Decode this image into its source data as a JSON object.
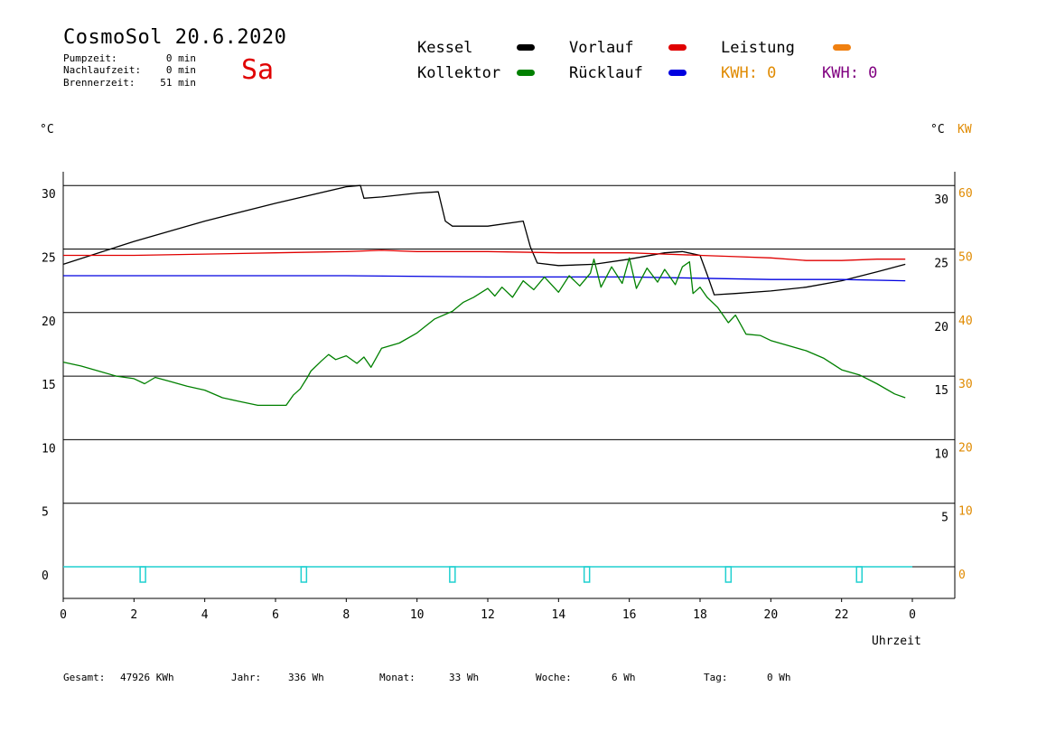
{
  "header": {
    "title": "CosmoSol 20.6.2020",
    "weekday": "Sa",
    "stats": [
      {
        "label": "Pumpzeit:",
        "value": "0 min"
      },
      {
        "label": "Nachlaufzeit:",
        "value": "0 min"
      },
      {
        "label": "Brennerzeit:",
        "value": "51 min"
      }
    ]
  },
  "legend": {
    "items": [
      {
        "label": "Kessel",
        "color": "#000000"
      },
      {
        "label": "Vorlauf",
        "color": "#e00000"
      },
      {
        "label": "Leistung",
        "color": "#f08010"
      },
      {
        "label": "Kollektor",
        "color": "#008000"
      },
      {
        "label": "Rücklauf",
        "color": "#0000e0"
      }
    ],
    "kwh": [
      {
        "label": "KWH: 0",
        "color": "#e08a00"
      },
      {
        "label": "KWH: 0",
        "color": "#800080"
      }
    ]
  },
  "axes": {
    "left_unit": "°C",
    "right_unit": "°C",
    "right_unit2": "KW",
    "xlabel": "Uhrzeit"
  },
  "footer": [
    {
      "label": "Gesamt:",
      "value": "47926 KWh"
    },
    {
      "label": "Jahr:",
      "value": "336 Wh"
    },
    {
      "label": "Monat:",
      "value": "33 Wh"
    },
    {
      "label": "Woche:",
      "value": "6 Wh"
    },
    {
      "label": "Tag:",
      "value": "0 Wh"
    }
  ],
  "chart_data": {
    "type": "line",
    "x_ticks": [
      "0",
      "2",
      "4",
      "6",
      "8",
      "10",
      "12",
      "14",
      "16",
      "18",
      "20",
      "22",
      "0"
    ],
    "y_left_ticks": [
      "0",
      "5",
      "10",
      "15",
      "20",
      "25",
      "30"
    ],
    "y_right_ticks": [
      "5",
      "10",
      "15",
      "20",
      "25",
      "30"
    ],
    "y_kw_ticks": [
      "0",
      "10",
      "20",
      "30",
      "40",
      "50",
      "60"
    ],
    "xlim": [
      0,
      24
    ],
    "ylim": [
      -2.4,
      31
    ],
    "series": [
      {
        "name": "Kessel",
        "color": "#000000",
        "points": [
          [
            0,
            23.8
          ],
          [
            2,
            25.6
          ],
          [
            4,
            27.2
          ],
          [
            6,
            28.6
          ],
          [
            8,
            29.9
          ],
          [
            8.4,
            30.0
          ],
          [
            8.5,
            29.0
          ],
          [
            9,
            29.1
          ],
          [
            10,
            29.4
          ],
          [
            10.6,
            29.5
          ],
          [
            10.8,
            27.2
          ],
          [
            11,
            26.8
          ],
          [
            12,
            26.8
          ],
          [
            13,
            27.2
          ],
          [
            13.2,
            25.2
          ],
          [
            13.4,
            23.9
          ],
          [
            14,
            23.7
          ],
          [
            15,
            23.8
          ],
          [
            16,
            24.2
          ],
          [
            17,
            24.7
          ],
          [
            17.5,
            24.8
          ],
          [
            18,
            24.5
          ],
          [
            18.2,
            23.0
          ],
          [
            18.4,
            21.4
          ],
          [
            19,
            21.5
          ],
          [
            20,
            21.7
          ],
          [
            21,
            22.0
          ],
          [
            22,
            22.5
          ],
          [
            23,
            23.2
          ],
          [
            23.8,
            23.8
          ]
        ]
      },
      {
        "name": "Vorlauf",
        "color": "#e00000",
        "points": [
          [
            0,
            24.5
          ],
          [
            2,
            24.5
          ],
          [
            4,
            24.6
          ],
          [
            6,
            24.7
          ],
          [
            8,
            24.8
          ],
          [
            9,
            24.9
          ],
          [
            10,
            24.8
          ],
          [
            12,
            24.8
          ],
          [
            14,
            24.7
          ],
          [
            16,
            24.7
          ],
          [
            17,
            24.6
          ],
          [
            18,
            24.5
          ],
          [
            19,
            24.4
          ],
          [
            20,
            24.3
          ],
          [
            21,
            24.1
          ],
          [
            22,
            24.1
          ],
          [
            23,
            24.2
          ],
          [
            23.8,
            24.2
          ]
        ]
      },
      {
        "name": "Rücklauf",
        "color": "#0000e0",
        "points": [
          [
            0,
            22.9
          ],
          [
            4,
            22.9
          ],
          [
            8,
            22.9
          ],
          [
            12,
            22.8
          ],
          [
            16,
            22.8
          ],
          [
            18,
            22.7
          ],
          [
            20,
            22.6
          ],
          [
            22,
            22.6
          ],
          [
            23.8,
            22.5
          ]
        ]
      },
      {
        "name": "Kollektor",
        "color": "#008000",
        "points": [
          [
            0,
            16.1
          ],
          [
            0.5,
            15.8
          ],
          [
            1,
            15.4
          ],
          [
            1.5,
            15.0
          ],
          [
            2,
            14.8
          ],
          [
            2.3,
            14.4
          ],
          [
            2.6,
            14.9
          ],
          [
            3,
            14.6
          ],
          [
            3.5,
            14.2
          ],
          [
            4,
            13.9
          ],
          [
            4.5,
            13.3
          ],
          [
            5,
            13.0
          ],
          [
            5.5,
            12.7
          ],
          [
            6,
            12.7
          ],
          [
            6.3,
            12.7
          ],
          [
            6.5,
            13.5
          ],
          [
            6.7,
            14.0
          ],
          [
            6.9,
            14.9
          ],
          [
            7,
            15.4
          ],
          [
            7.3,
            16.2
          ],
          [
            7.5,
            16.7
          ],
          [
            7.7,
            16.3
          ],
          [
            8,
            16.6
          ],
          [
            8.3,
            16.0
          ],
          [
            8.5,
            16.5
          ],
          [
            8.7,
            15.7
          ],
          [
            9,
            17.2
          ],
          [
            9.5,
            17.6
          ],
          [
            10,
            18.4
          ],
          [
            10.5,
            19.5
          ],
          [
            11,
            20.1
          ],
          [
            11.3,
            20.8
          ],
          [
            11.6,
            21.2
          ],
          [
            12,
            21.9
          ],
          [
            12.2,
            21.3
          ],
          [
            12.4,
            22.0
          ],
          [
            12.7,
            21.2
          ],
          [
            13,
            22.5
          ],
          [
            13.3,
            21.8
          ],
          [
            13.6,
            22.8
          ],
          [
            14,
            21.6
          ],
          [
            14.3,
            22.9
          ],
          [
            14.6,
            22.1
          ],
          [
            14.9,
            23.1
          ],
          [
            15,
            24.2
          ],
          [
            15.2,
            22.0
          ],
          [
            15.5,
            23.6
          ],
          [
            15.8,
            22.3
          ],
          [
            16,
            24.3
          ],
          [
            16.2,
            21.9
          ],
          [
            16.5,
            23.5
          ],
          [
            16.8,
            22.4
          ],
          [
            17,
            23.4
          ],
          [
            17.3,
            22.2
          ],
          [
            17.5,
            23.6
          ],
          [
            17.7,
            24.0
          ],
          [
            17.8,
            21.5
          ],
          [
            18,
            22.0
          ],
          [
            18.2,
            21.2
          ],
          [
            18.5,
            20.4
          ],
          [
            18.8,
            19.2
          ],
          [
            19,
            19.8
          ],
          [
            19.3,
            18.3
          ],
          [
            19.7,
            18.2
          ],
          [
            20,
            17.8
          ],
          [
            20.5,
            17.4
          ],
          [
            21,
            17.0
          ],
          [
            21.5,
            16.4
          ],
          [
            22,
            15.5
          ],
          [
            22.5,
            15.1
          ],
          [
            23,
            14.4
          ],
          [
            23.5,
            13.6
          ],
          [
            23.8,
            13.3
          ]
        ]
      }
    ],
    "pump_marker_times": [
      2.25,
      6.8,
      11.0,
      14.8,
      18.8,
      22.5
    ]
  }
}
